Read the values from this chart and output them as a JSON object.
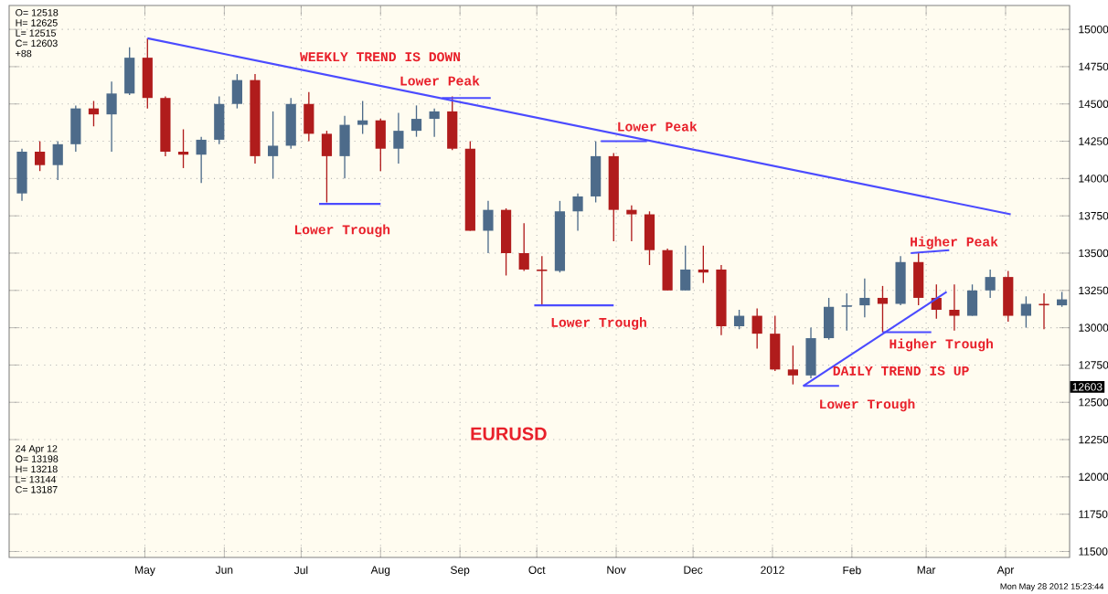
{
  "chart_data": {
    "type": "candlestick",
    "x": [
      "2011-03-14",
      "2011-03-21",
      "2011-03-28",
      "2011-04-04",
      "2011-04-11",
      "2011-04-18",
      "2011-04-25",
      "2011-05-02",
      "2011-05-09",
      "2011-05-16",
      "2011-05-23",
      "2011-05-30",
      "2011-06-06",
      "2011-06-13",
      "2011-06-20",
      "2011-06-27",
      "2011-07-04",
      "2011-07-11",
      "2011-07-18",
      "2011-07-25",
      "2011-08-01",
      "2011-08-08",
      "2011-08-15",
      "2011-08-22",
      "2011-08-29",
      "2011-09-05",
      "2011-09-12",
      "2011-09-19",
      "2011-09-26",
      "2011-10-03",
      "2011-10-10",
      "2011-10-17",
      "2011-10-24",
      "2011-10-31",
      "2011-11-07",
      "2011-11-14",
      "2011-11-21",
      "2011-11-28",
      "2011-12-05",
      "2011-12-12",
      "2011-12-19",
      "2011-12-26",
      "2012-01-02",
      "2012-01-09",
      "2012-01-16",
      "2012-01-23",
      "2012-01-30",
      "2012-02-06",
      "2012-02-13",
      "2012-02-20",
      "2012-02-27",
      "2012-03-05",
      "2012-03-12",
      "2012-03-19",
      "2012-03-26",
      "2012-04-02",
      "2012-04-09",
      "2012-04-16",
      "2012-04-23"
    ],
    "ohlc": [
      [
        13900,
        14200,
        13850,
        14180
      ],
      [
        14180,
        14250,
        14050,
        14090
      ],
      [
        14090,
        14250,
        13990,
        14230
      ],
      [
        14230,
        14490,
        14180,
        14470
      ],
      [
        14470,
        14520,
        14350,
        14430
      ],
      [
        14430,
        14650,
        14180,
        14570
      ],
      [
        14570,
        14880,
        14560,
        14810
      ],
      [
        14810,
        14940,
        14470,
        14540
      ],
      [
        14540,
        14550,
        14150,
        14180
      ],
      [
        14180,
        14330,
        14070,
        14160
      ],
      [
        14160,
        14280,
        13970,
        14260
      ],
      [
        14260,
        14550,
        14230,
        14500
      ],
      [
        14500,
        14700,
        14470,
        14660
      ],
      [
        14660,
        14700,
        14100,
        14150
      ],
      [
        14150,
        14450,
        14000,
        14220
      ],
      [
        14220,
        14540,
        14200,
        14500
      ],
      [
        14500,
        14580,
        14250,
        14300
      ],
      [
        14300,
        14320,
        13840,
        14150
      ],
      [
        14150,
        14420,
        14000,
        14360
      ],
      [
        14360,
        14520,
        14300,
        14390
      ],
      [
        14390,
        14400,
        14050,
        14200
      ],
      [
        14200,
        14440,
        14100,
        14320
      ],
      [
        14320,
        14490,
        14280,
        14400
      ],
      [
        14400,
        14470,
        14280,
        14450
      ],
      [
        14450,
        14550,
        14190,
        14200
      ],
      [
        14200,
        14250,
        13650,
        13650
      ],
      [
        13650,
        13850,
        13500,
        13790
      ],
      [
        13790,
        13800,
        13350,
        13500
      ],
      [
        13500,
        13700,
        13380,
        13390
      ],
      [
        13390,
        13480,
        13145,
        13380
      ],
      [
        13380,
        13850,
        13370,
        13780
      ],
      [
        13780,
        13900,
        13650,
        13880
      ],
      [
        13880,
        14250,
        13840,
        14150
      ],
      [
        14150,
        14170,
        13580,
        13790
      ],
      [
        13790,
        13820,
        13580,
        13760
      ],
      [
        13760,
        13780,
        13420,
        13520
      ],
      [
        13520,
        13530,
        13250,
        13250
      ],
      [
        13250,
        13550,
        13250,
        13390
      ],
      [
        13390,
        13550,
        13300,
        13370
      ],
      [
        13390,
        13420,
        12950,
        13010
      ],
      [
        13010,
        13120,
        12990,
        13080
      ],
      [
        13080,
        13130,
        12860,
        12960
      ],
      [
        12960,
        13080,
        12710,
        12720
      ],
      [
        12720,
        12880,
        12620,
        12680
      ],
      [
        12680,
        13000,
        12660,
        12930
      ],
      [
        12930,
        13200,
        12920,
        13140
      ],
      [
        13140,
        13230,
        12980,
        13150
      ],
      [
        13150,
        13330,
        13070,
        13200
      ],
      [
        13200,
        13280,
        12970,
        13160
      ],
      [
        13160,
        13480,
        13150,
        13440
      ],
      [
        13440,
        13500,
        13150,
        13200
      ],
      [
        13200,
        13290,
        13060,
        13120
      ],
      [
        13120,
        13290,
        12980,
        13080
      ],
      [
        13080,
        13290,
        13080,
        13250
      ],
      [
        13250,
        13390,
        13200,
        13340
      ],
      [
        13340,
        13380,
        13040,
        13080
      ],
      [
        13080,
        13210,
        13000,
        13160
      ],
      [
        13160,
        13230,
        12990,
        13150
      ],
      [
        13150,
        13240,
        13140,
        13190
      ]
    ],
    "colors": [
      "#4d6b8a",
      "#b01c1c",
      "#4d6b8a",
      "#4d6b8a",
      "#b01c1c",
      "#4d6b8a",
      "#4d6b8a",
      "#b01c1c",
      "#b01c1c",
      "#b01c1c",
      "#4d6b8a",
      "#4d6b8a",
      "#4d6b8a",
      "#b01c1c",
      "#4d6b8a",
      "#4d6b8a",
      "#b01c1c",
      "#b01c1c",
      "#4d6b8a",
      "#4d6b8a",
      "#b01c1c",
      "#4d6b8a",
      "#4d6b8a",
      "#4d6b8a",
      "#b01c1c",
      "#b01c1c",
      "#4d6b8a",
      "#b01c1c",
      "#b01c1c",
      "#b01c1c",
      "#4d6b8a",
      "#4d6b8a",
      "#4d6b8a",
      "#b01c1c",
      "#b01c1c",
      "#b01c1c",
      "#b01c1c",
      "#4d6b8a",
      "#b01c1c",
      "#b01c1c",
      "#4d6b8a",
      "#b01c1c",
      "#b01c1c",
      "#b01c1c",
      "#4d6b8a",
      "#4d6b8a",
      "#4d6b8a",
      "#4d6b8a",
      "#b01c1c",
      "#4d6b8a",
      "#b01c1c",
      "#b01c1c",
      "#b01c1c",
      "#4d6b8a",
      "#4d6b8a",
      "#b01c1c",
      "#4d6b8a",
      "#b01c1c",
      "#4d6b8a"
    ],
    "series": [
      {
        "type": "line",
        "color": "#4b4bff",
        "x": [
          "2011-05-02",
          "2012-04-03"
        ],
        "values": [
          14940,
          13760
        ]
      },
      {
        "type": "line",
        "color": "#4b4bff",
        "x": [
          "2012-01-13",
          "2012-03-09"
        ],
        "values": [
          12610,
          13240
        ]
      },
      {
        "type": "line",
        "color": "#4b4bff",
        "x": [
          "2011-07-08",
          "2011-08-01"
        ],
        "values": [
          13830,
          13830
        ]
      },
      {
        "type": "line",
        "color": "#4b4bff",
        "x": [
          "2011-08-25",
          "2011-09-13"
        ],
        "values": [
          14540,
          14540
        ]
      },
      {
        "type": "line",
        "color": "#4b4bff",
        "x": [
          "2011-09-30",
          "2011-10-31"
        ],
        "values": [
          13150,
          13150
        ]
      },
      {
        "type": "line",
        "color": "#4b4bff",
        "x": [
          "2011-10-26",
          "2011-11-13"
        ],
        "values": [
          14250,
          14250
        ]
      },
      {
        "type": "line",
        "color": "#4b4bff",
        "x": [
          "2012-01-13",
          "2012-01-27"
        ],
        "values": [
          12610,
          12610
        ]
      },
      {
        "type": "line",
        "color": "#4b4bff",
        "x": [
          "2012-02-24",
          "2012-03-10"
        ],
        "values": [
          13500,
          13520
        ]
      },
      {
        "type": "line",
        "color": "#4b4bff",
        "x": [
          "2012-02-13",
          "2012-03-03"
        ],
        "values": [
          12970,
          12970
        ]
      }
    ],
    "xlim": [
      "2011-03-09",
      "2012-04-26"
    ],
    "xticks": [
      {
        "value": "2011-05-01",
        "label": "May"
      },
      {
        "value": "2011-06-01",
        "label": "Jun"
      },
      {
        "value": "2011-07-01",
        "label": "Jul"
      },
      {
        "value": "2011-08-01",
        "label": "Aug"
      },
      {
        "value": "2011-09-01",
        "label": "Sep"
      },
      {
        "value": "2011-10-01",
        "label": "Oct"
      },
      {
        "value": "2011-11-01",
        "label": "Nov"
      },
      {
        "value": "2011-12-01",
        "label": "Dec"
      },
      {
        "value": "2012-01-01",
        "label": "2012"
      },
      {
        "value": "2012-02-01",
        "label": "Feb"
      },
      {
        "value": "2012-03-01",
        "label": "Mar"
      },
      {
        "value": "2012-04-01",
        "label": "Apr"
      }
    ],
    "ylim": [
      11460,
      15160
    ],
    "yticks": [
      11500,
      11750,
      12000,
      12250,
      12500,
      12750,
      13000,
      13250,
      13500,
      13750,
      14000,
      14250,
      14500,
      14750,
      15000
    ],
    "grid": true,
    "annotations": [
      "WEEKLY TREND IS DOWN",
      "Lower Peak",
      "Lower Trough",
      "Lower Peak",
      "Lower Trough",
      "Higher Peak",
      "Higher Trough",
      "DAILY TREND IS UP",
      "Lower Trough",
      "EURUSD",
      "O= 12518",
      "H= 12625",
      "L= 12515",
      "C= 12603",
      "+88",
      "24 Apr 12",
      "O= 13198",
      "H= 13218",
      "L= 13144",
      "C= 13187",
      "Mon May 28 2012 15:23:44",
      "12603"
    ]
  }
}
